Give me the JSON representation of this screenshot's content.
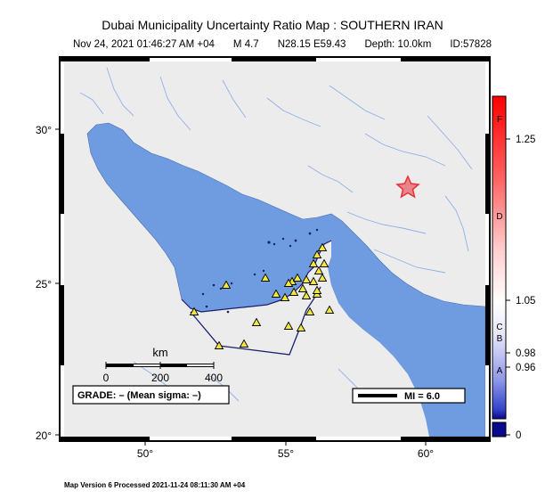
{
  "title": "Dubai Municipality Uncertainty Ratio Map : SOUTHERN IRAN",
  "subtitle": {
    "datetime": "Nov 24, 2021 01:46:27 AM +04",
    "magnitude": "M 4.7",
    "location": "N28.15 E59.43",
    "depth": "Depth: 10.0km",
    "id": "ID:57828"
  },
  "axes": {
    "lat_ticks": [
      "30°",
      "25°",
      "20°"
    ],
    "lon_ticks": [
      "50°",
      "55°",
      "60°"
    ]
  },
  "scale_bar": {
    "unit": "km",
    "labels": [
      "0",
      "200",
      "400"
    ]
  },
  "grade": "GRADE: – (Mean sigma: –)",
  "mi_legend": "MI = 6.0",
  "colorbar": {
    "letters": [
      "F",
      "D",
      "C",
      "B",
      "A"
    ],
    "values": [
      "1.25",
      "1.05",
      "0.98",
      "0.96",
      "0"
    ]
  },
  "footer": "Map Version 6 Processed 2021-11-24 08:11:30 AM +04",
  "colors": {
    "sea": "#6f9be0",
    "land": "#ececec",
    "border": "#1a1f6e",
    "epicenter": "#e8303a",
    "station": "#f3e83a"
  }
}
